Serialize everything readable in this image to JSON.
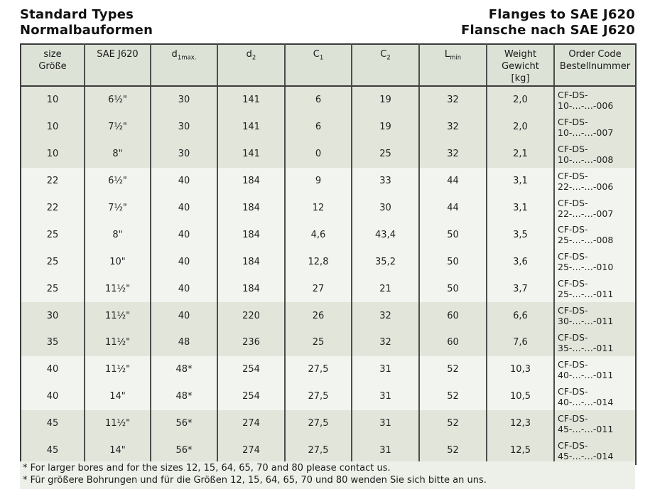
{
  "titles": {
    "left_line1": "Standard Types",
    "left_line2": "Normalbauformen",
    "right_line1": "Flanges to SAE J620",
    "right_line2": "Flansche nach SAE J620"
  },
  "table": {
    "columns": [
      {
        "id": "size",
        "label_lines": [
          "size",
          "Größe"
        ]
      },
      {
        "id": "sae",
        "label_lines": [
          "SAE J620"
        ]
      },
      {
        "id": "d1max",
        "base": "d",
        "sub": "1max."
      },
      {
        "id": "d2",
        "base": "d",
        "sub": "2"
      },
      {
        "id": "c1",
        "base": "C",
        "sub": "1"
      },
      {
        "id": "c2",
        "base": "C",
        "sub": "2"
      },
      {
        "id": "lmin",
        "base": "L",
        "sub": "min"
      },
      {
        "id": "weight",
        "label_lines": [
          "Weight",
          "Gewicht",
          "[kg]"
        ]
      },
      {
        "id": "order",
        "label_lines": [
          "Order Code",
          "Bestellnummer"
        ]
      }
    ],
    "rows": [
      {
        "band": "dark",
        "cells": [
          "10",
          "6½\"",
          "30",
          "141",
          "6",
          "19",
          "32",
          "2,0",
          "CF-DS-10-…-…-006"
        ]
      },
      {
        "band": "dark",
        "cells": [
          "10",
          "7½\"",
          "30",
          "141",
          "6",
          "19",
          "32",
          "2,0",
          "CF-DS-10-…-…-007"
        ]
      },
      {
        "band": "dark",
        "cells": [
          "10",
          "8\"",
          "30",
          "141",
          "0",
          "25",
          "32",
          "2,1",
          "CF-DS-10-…-…-008"
        ]
      },
      {
        "band": "light",
        "cells": [
          "22",
          "6½\"",
          "40",
          "184",
          "9",
          "33",
          "44",
          "3,1",
          "CF-DS-22-…-…-006"
        ]
      },
      {
        "band": "light",
        "cells": [
          "22",
          "7½\"",
          "40",
          "184",
          "12",
          "30",
          "44",
          "3,1",
          "CF-DS-22-…-…-007"
        ]
      },
      {
        "band": "light",
        "cells": [
          "25",
          "8\"",
          "40",
          "184",
          "4,6",
          "43,4",
          "50",
          "3,5",
          "CF-DS-25-…-…-008"
        ]
      },
      {
        "band": "light",
        "cells": [
          "25",
          "10\"",
          "40",
          "184",
          "12,8",
          "35,2",
          "50",
          "3,6",
          "CF-DS-25-…-…-010"
        ]
      },
      {
        "band": "light",
        "cells": [
          "25",
          "11½\"",
          "40",
          "184",
          "27",
          "21",
          "50",
          "3,7",
          "CF-DS-25-…-…-011"
        ]
      },
      {
        "band": "dark",
        "cells": [
          "30",
          "11½\"",
          "40",
          "220",
          "26",
          "32",
          "60",
          "6,6",
          "CF-DS-30-…-…-011"
        ]
      },
      {
        "band": "dark",
        "cells": [
          "35",
          "11½\"",
          "48",
          "236",
          "25",
          "32",
          "60",
          "7,6",
          "CF-DS-35-…-…-011"
        ]
      },
      {
        "band": "light",
        "cells": [
          "40",
          "11½\"",
          "48*",
          "254",
          "27,5",
          "31",
          "52",
          "10,3",
          "CF-DS-40-…-…-011"
        ]
      },
      {
        "band": "light",
        "cells": [
          "40",
          "14\"",
          "48*",
          "254",
          "27,5",
          "31",
          "52",
          "10,5",
          "CF-DS-40-…-…-014"
        ]
      },
      {
        "band": "dark",
        "cells": [
          "45",
          "11½\"",
          "56*",
          "274",
          "27,5",
          "31",
          "52",
          "12,3",
          "CF-DS-45-…-…-011"
        ]
      },
      {
        "band": "dark",
        "cells": [
          "45",
          "14\"",
          "56*",
          "274",
          "27,5",
          "31",
          "52",
          "12,5",
          "CF-DS-45-…-…-014"
        ]
      }
    ],
    "footnotes": [
      "* For larger bores and for the sizes 12, 15, 64, 65, 70 and 80 please contact us.",
      "* Für größere Bohrungen und für die Größen 12, 15, 64, 65, 70 und 80 wenden Sie sich bitte an uns."
    ]
  },
  "colors": {
    "band_dark": "#e1e5da",
    "band_light": "#f2f4ef",
    "header_bg": "#dde2d7",
    "footnote_bg": "#edf0e9",
    "border": "#3c3c3c"
  }
}
